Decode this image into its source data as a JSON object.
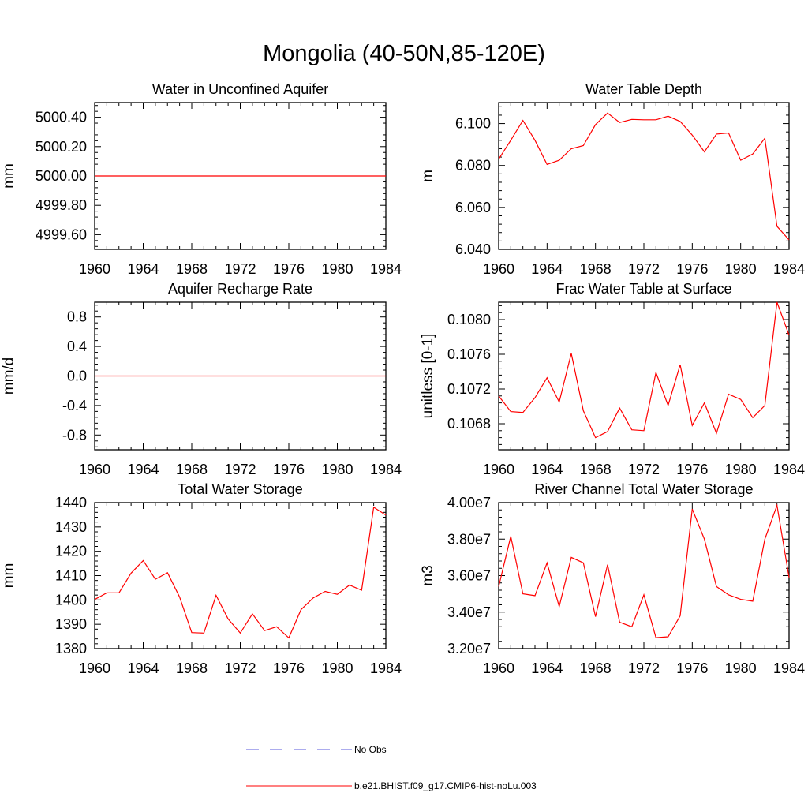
{
  "figure": {
    "title": "Mongolia (40-50N,85-120E)"
  },
  "chart_data": [
    {
      "type": "line",
      "title": "Water in Unconfined Aquifer",
      "ylabel": "mm",
      "xlim": [
        1960,
        1984
      ],
      "ylim": [
        4999.5,
        5000.5
      ],
      "xticks": [
        1960,
        1964,
        1968,
        1972,
        1976,
        1980,
        1984
      ],
      "yticks": [
        4999.6,
        4999.8,
        5000.0,
        5000.2,
        5000.4
      ],
      "ytick_labels": [
        "4999.60",
        "4999.80",
        "5000.00",
        "5000.20",
        "5000.40"
      ],
      "series": [
        {
          "color": "#ff0000",
          "x": [
            1960,
            1984
          ],
          "y": [
            5000.0,
            5000.0
          ]
        }
      ]
    },
    {
      "type": "line",
      "title": "Water Table Depth",
      "ylabel": "m",
      "xlim": [
        1960,
        1984
      ],
      "ylim": [
        6.04,
        6.11
      ],
      "xticks": [
        1960,
        1964,
        1968,
        1972,
        1976,
        1980,
        1984
      ],
      "yticks": [
        6.04,
        6.06,
        6.08,
        6.1
      ],
      "ytick_labels": [
        "6.040",
        "6.060",
        "6.080",
        "6.100"
      ],
      "series": [
        {
          "color": "#ff0000",
          "x": [
            1960,
            1961,
            1962,
            1963,
            1964,
            1965,
            1966,
            1967,
            1968,
            1969,
            1970,
            1971,
            1972,
            1973,
            1974,
            1975,
            1976,
            1977,
            1978,
            1979,
            1980,
            1981,
            1982,
            1983,
            1984
          ],
          "y": [
            6.083,
            6.092,
            6.1015,
            6.092,
            6.0805,
            6.0825,
            6.088,
            6.0895,
            6.0995,
            6.105,
            6.1005,
            6.102,
            6.1018,
            6.1018,
            6.1035,
            6.101,
            6.0945,
            6.0865,
            6.095,
            6.0955,
            6.0825,
            6.0855,
            6.093,
            6.051,
            6.0445
          ]
        }
      ]
    },
    {
      "type": "line",
      "title": "Aquifer Recharge Rate",
      "ylabel": "mm/d",
      "xlim": [
        1960,
        1984
      ],
      "ylim": [
        -1.0,
        1.0
      ],
      "xticks": [
        1960,
        1964,
        1968,
        1972,
        1976,
        1980,
        1984
      ],
      "yticks": [
        -0.8,
        -0.4,
        0.0,
        0.4,
        0.8
      ],
      "ytick_labels": [
        "-0.8",
        "-0.4",
        "0.0",
        "0.4",
        "0.8"
      ],
      "series": [
        {
          "color": "#ff0000",
          "x": [
            1960,
            1984
          ],
          "y": [
            0.0,
            0.0
          ]
        }
      ]
    },
    {
      "type": "line",
      "title": "Frac Water Table at Surface",
      "ylabel": "unitless [0-1]",
      "xlim": [
        1960,
        1984
      ],
      "ylim": [
        0.1065,
        0.1082
      ],
      "xticks": [
        1960,
        1964,
        1968,
        1972,
        1976,
        1980,
        1984
      ],
      "yticks": [
        0.1068,
        0.1072,
        0.1076,
        0.108
      ],
      "ytick_labels": [
        "0.1068",
        "0.1072",
        "0.1076",
        "0.1080"
      ],
      "series": [
        {
          "color": "#ff0000",
          "x": [
            1960,
            1961,
            1962,
            1963,
            1964,
            1965,
            1966,
            1967,
            1968,
            1969,
            1970,
            1971,
            1972,
            1973,
            1974,
            1975,
            1976,
            1977,
            1978,
            1979,
            1980,
            1981,
            1982,
            1983,
            1984
          ],
          "y": [
            0.10712,
            0.10694,
            0.10693,
            0.1071,
            0.10733,
            0.10705,
            0.10761,
            0.10695,
            0.10664,
            0.10671,
            0.10698,
            0.10673,
            0.10672,
            0.10739,
            0.10701,
            0.10748,
            0.10678,
            0.10704,
            0.10669,
            0.10714,
            0.10708,
            0.10687,
            0.10701,
            0.1082,
            0.10782
          ]
        }
      ]
    },
    {
      "type": "line",
      "title": "Total Water Storage",
      "ylabel": "mm",
      "xlim": [
        1960,
        1984
      ],
      "ylim": [
        1380,
        1440
      ],
      "xticks": [
        1960,
        1964,
        1968,
        1972,
        1976,
        1980,
        1984
      ],
      "yticks": [
        1380,
        1390,
        1400,
        1410,
        1420,
        1430,
        1440
      ],
      "ytick_labels": [
        "1380",
        "1390",
        "1400",
        "1410",
        "1420",
        "1430",
        "1440"
      ],
      "series": [
        {
          "color": "#ff0000",
          "x": [
            1960,
            1961,
            1962,
            1963,
            1964,
            1965,
            1966,
            1967,
            1968,
            1969,
            1970,
            1971,
            1972,
            1973,
            1974,
            1975,
            1976,
            1977,
            1978,
            1979,
            1980,
            1981,
            1982,
            1983,
            1984
          ],
          "y": [
            1400.2,
            1402.9,
            1402.9,
            1411.0,
            1416.2,
            1408.5,
            1411.2,
            1401.2,
            1386.6,
            1386.4,
            1401.9,
            1392.2,
            1386.4,
            1394.3,
            1387.4,
            1389.0,
            1384.4,
            1396.0,
            1400.8,
            1403.5,
            1402.3,
            1406.1,
            1404.0,
            1438.1,
            1434.9
          ]
        }
      ]
    },
    {
      "type": "line",
      "title": "River Channel Total Water Storage",
      "ylabel": "m3",
      "xlim": [
        1960,
        1984
      ],
      "ylim": [
        32000000,
        40000000
      ],
      "xticks": [
        1960,
        1964,
        1968,
        1972,
        1976,
        1980,
        1984
      ],
      "yticks": [
        32000000,
        34000000,
        36000000,
        38000000,
        40000000
      ],
      "ytick_labels": [
        "3.20e7",
        "3.40e7",
        "3.60e7",
        "3.80e7",
        "4.00e7"
      ],
      "series": [
        {
          "color": "#ff0000",
          "x": [
            1960,
            1961,
            1962,
            1963,
            1964,
            1965,
            1966,
            1967,
            1968,
            1969,
            1970,
            1971,
            1972,
            1973,
            1974,
            1975,
            1976,
            1977,
            1978,
            1979,
            1980,
            1981,
            1982,
            1983,
            1984
          ],
          "y": [
            35400000,
            38150000,
            35000000,
            34900000,
            36700000,
            34300000,
            37000000,
            36700000,
            33750000,
            36600000,
            33450000,
            33200000,
            34950000,
            32600000,
            32650000,
            33800000,
            39650000,
            38000000,
            35400000,
            34950000,
            34700000,
            34600000,
            38000000,
            39850000,
            35900000
          ]
        }
      ]
    }
  ],
  "legend": [
    {
      "label": "No Obs",
      "color": "#5a5adc",
      "dashed": true
    },
    {
      "label": "b.e21.BHIST.f09_g17.CMIP6-hist-noLu.003",
      "color": "#ff0000",
      "dashed": false
    }
  ]
}
